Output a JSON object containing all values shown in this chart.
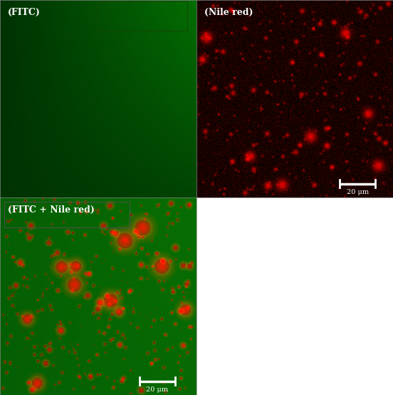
{
  "fig_width": 5.52,
  "fig_height": 5.54,
  "dpi": 100,
  "label_fitc": "(FITC)",
  "label_nile": "(Nile red)",
  "label_overlay": "(FITC + Nile red)",
  "scale_bar_label": "20 μm",
  "label_fontsize": 9,
  "scalebar_fontsize": 7,
  "fitc_green_base": 50,
  "fitc_green_range": 60,
  "nile_noise_max": 50,
  "overlay_green_base": 70,
  "overlay_green_range": 40,
  "nile_large_count": 15,
  "nile_large_rmin": 4,
  "nile_large_rmax": 10,
  "nile_medium_count": 60,
  "nile_medium_rmin": 2,
  "nile_medium_rmax": 5,
  "nile_small_count": 300,
  "nile_small_rmin": 1,
  "nile_small_rmax": 3,
  "overlay_large_count": 18,
  "overlay_large_rmin": 5,
  "overlay_large_rmax": 18,
  "overlay_medium_count": 60,
  "overlay_medium_rmin": 2,
  "overlay_medium_rmax": 7,
  "overlay_small_count": 300,
  "overlay_small_rmin": 1,
  "overlay_small_rmax": 4
}
